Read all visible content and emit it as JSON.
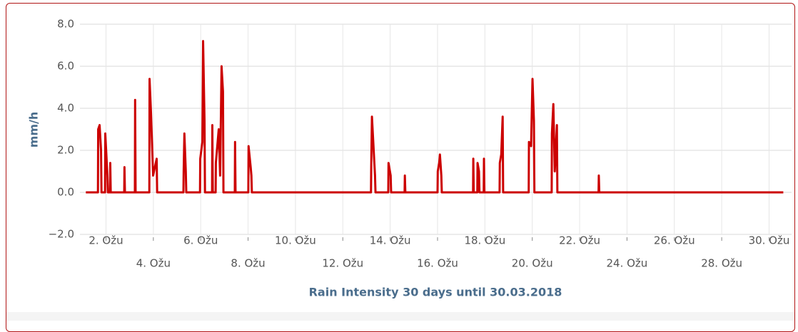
{
  "chart_data": {
    "type": "line",
    "title": "Rain Intensity 30 days until 30.03.2018",
    "y_label": "mm/h",
    "color": "#cc0000",
    "grid": true,
    "xlim": [
      0.9,
      30.95
    ],
    "ylim": [
      -2,
      8
    ],
    "yticks": [
      {
        "value": -2,
        "label": "−2.0"
      },
      {
        "value": 0,
        "label": "0.0"
      },
      {
        "value": 2,
        "label": "2.0"
      },
      {
        "value": 4,
        "label": "4.0"
      },
      {
        "value": 6,
        "label": "6.0"
      },
      {
        "value": 8,
        "label": "8.0"
      }
    ],
    "xticks": [
      {
        "value": 2,
        "label": "2. Ožu"
      },
      {
        "value": 4,
        "label": "4. Ožu"
      },
      {
        "value": 6,
        "label": "6. Ožu"
      },
      {
        "value": 8,
        "label": "8. Ožu"
      },
      {
        "value": 10,
        "label": "10. Ožu"
      },
      {
        "value": 12,
        "label": "12. Ožu"
      },
      {
        "value": 14,
        "label": "14. Ožu"
      },
      {
        "value": 16,
        "label": "16. Ožu"
      },
      {
        "value": 18,
        "label": "18. Ožu"
      },
      {
        "value": 20,
        "label": "20. Ožu"
      },
      {
        "value": 22,
        "label": "22. Ožu"
      },
      {
        "value": 24,
        "label": "24. Ožu"
      },
      {
        "value": 26,
        "label": "26. Ožu"
      },
      {
        "value": 28,
        "label": "28. Ožu"
      },
      {
        "value": 30,
        "label": "30. Ožu"
      }
    ],
    "x": [
      1.15,
      1.66,
      1.67,
      1.73,
      1.79,
      1.81,
      1.96,
      1.97,
      2.06,
      2.08,
      2.17,
      2.18,
      2.2,
      2.77,
      2.78,
      2.8,
      3.22,
      3.23,
      3.25,
      3.83,
      3.84,
      3.9,
      3.99,
      4.14,
      4.16,
      5.27,
      5.28,
      5.31,
      5.37,
      5.39,
      5.97,
      5.98,
      6.07,
      6.1,
      6.16,
      6.18,
      6.48,
      6.49,
      6.51,
      6.63,
      6.64,
      6.76,
      6.82,
      6.88,
      6.94,
      6.96,
      7.44,
      7.45,
      7.47,
      8.01,
      8.02,
      8.11,
      8.14,
      8.16,
      13.19,
      13.2,
      13.23,
      13.36,
      13.38,
      13.92,
      13.93,
      14.02,
      14.04,
      14.61,
      14.62,
      14.64,
      16.0,
      16.01,
      16.07,
      16.1,
      16.16,
      16.18,
      17.5,
      17.51,
      17.53,
      17.68,
      17.69,
      17.75,
      17.77,
      17.95,
      17.96,
      17.98,
      18.62,
      18.63,
      18.69,
      18.75,
      18.77,
      19.85,
      19.86,
      19.95,
      20.01,
      20.07,
      20.09,
      20.82,
      20.83,
      20.89,
      20.95,
      21.04,
      21.06,
      22.8,
      22.81,
      22.83,
      30.6
    ],
    "values": [
      0,
      0,
      3.0,
      3.2,
      2.0,
      0,
      0,
      2.8,
      0.8,
      0,
      0,
      1.4,
      0,
      0,
      1.2,
      0,
      0,
      4.4,
      0,
      0,
      5.4,
      3.8,
      0.8,
      1.6,
      0,
      0,
      1.0,
      2.8,
      1.0,
      0,
      0,
      1.6,
      2.4,
      7.2,
      3.4,
      0,
      0,
      3.2,
      0,
      0,
      1.4,
      3.0,
      0.8,
      6.0,
      4.8,
      0,
      0,
      2.4,
      0,
      0,
      2.2,
      1.2,
      0.8,
      0,
      0,
      1.2,
      3.6,
      0.8,
      0,
      0,
      1.4,
      0.8,
      0,
      0,
      0.8,
      0,
      0,
      1.0,
      1.4,
      1.8,
      0.8,
      0,
      0,
      1.6,
      0,
      0,
      1.4,
      1.0,
      0,
      0,
      1.6,
      0,
      0,
      1.4,
      1.8,
      3.6,
      0,
      0,
      2.4,
      2.2,
      5.4,
      3.4,
      0,
      0,
      2.8,
      4.2,
      1.0,
      3.2,
      0,
      0,
      0.8,
      0,
      0
    ]
  }
}
